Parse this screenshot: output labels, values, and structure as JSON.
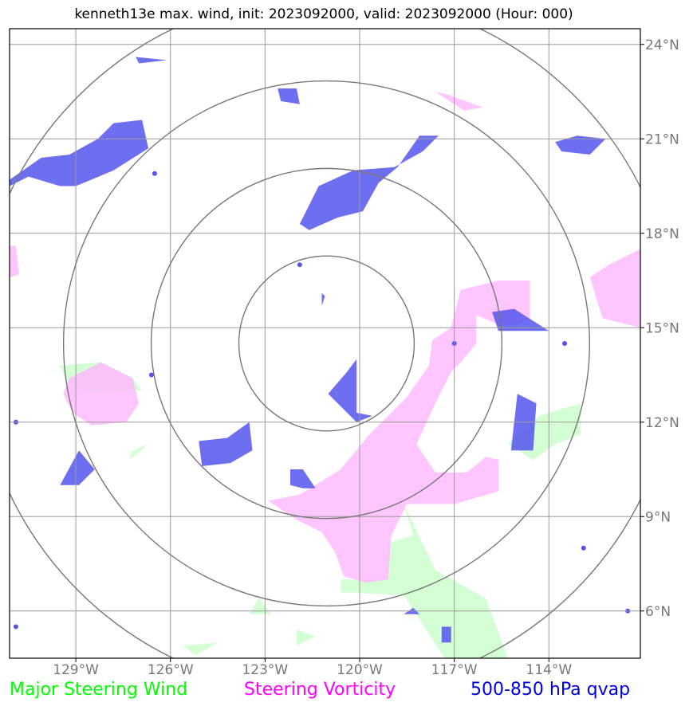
{
  "title": "kenneth13e max. wind, init: 2023092000, valid: 2023092000 (Hour: 000)",
  "legend": [
    {
      "label": "Major Steering Wind",
      "color": "#00ff00"
    },
    {
      "label": "Steering Vorticity",
      "color": "#ff00ff"
    },
    {
      "label": "500-850 hPa qvap",
      "color": "#0000dd"
    }
  ],
  "chart_data": {
    "type": "map",
    "projection": "lat-lon",
    "lon_range": [
      -131.1,
      -111.1
    ],
    "lat_range": [
      4.5,
      24.5
    ],
    "lon_ticks": [
      -129,
      -126,
      -123,
      -120,
      -117,
      -114
    ],
    "lat_ticks": [
      6,
      9,
      12,
      15,
      18,
      21,
      24
    ],
    "lon_tick_labels": [
      "129°W",
      "126°W",
      "123°W",
      "120°W",
      "117°W",
      "114°W"
    ],
    "lat_tick_labels": [
      "6°N",
      "9°N",
      "12°N",
      "15°N",
      "18°N",
      "21°N",
      "24°N"
    ],
    "grid": true,
    "range_rings": {
      "center": [
        -121.05,
        14.5
      ],
      "radii_deg": [
        2.78,
        5.56,
        8.34,
        11.12
      ],
      "color": "#777777"
    },
    "layers": [
      {
        "name": "Major Steering Wind",
        "color": "#ccffcc",
        "polygons": [
          [
            [
              -129.5,
              13.8
            ],
            [
              -128.2,
              13.9
            ],
            [
              -127.2,
              13.4
            ],
            [
              -126.9,
              13.0
            ],
            [
              -128,
              12.9
            ],
            [
              -129.2,
              13.1
            ]
          ],
          [
            [
              -120.6,
              7.0
            ],
            [
              -119.3,
              7.0
            ],
            [
              -119.0,
              8.2
            ],
            [
              -118.3,
              8.4
            ],
            [
              -118.6,
              9.4
            ],
            [
              -117.6,
              7.3
            ],
            [
              -116.0,
              6.4
            ],
            [
              -115.3,
              4.5
            ],
            [
              -117.3,
              4.5
            ],
            [
              -118.6,
              6.5
            ],
            [
              -120.6,
              6.6
            ]
          ],
          [
            [
              -114.3,
              12.2
            ],
            [
              -113.0,
              12.6
            ],
            [
              -113.0,
              11.6
            ],
            [
              -113.8,
              11.3
            ],
            [
              -114.5,
              10.8
            ],
            [
              -115.3,
              11.3
            ]
          ],
          [
            [
              -125.2,
              4.6
            ],
            [
              -124.5,
              5.0
            ],
            [
              -125.6,
              4.9
            ]
          ],
          [
            [
              -127.2,
              11.1
            ],
            [
              -126.7,
              11.3
            ],
            [
              -127.3,
              10.8
            ]
          ],
          [
            [
              -122.0,
              5.4
            ],
            [
              -121.4,
              5.2
            ],
            [
              -122.0,
              4.9
            ]
          ],
          [
            [
              -123.5,
              5.9
            ],
            [
              -122.8,
              5.9
            ],
            [
              -123.2,
              6.4
            ]
          ]
        ]
      },
      {
        "name": "Steering Vorticity",
        "color": "#ffbbff",
        "polygons": [
          [
            [
              -121.9,
              9.7
            ],
            [
              -120.6,
              10.5
            ],
            [
              -119.7,
              11.6
            ],
            [
              -118.5,
              12.8
            ],
            [
              -117.8,
              13.8
            ],
            [
              -117.7,
              14.6
            ],
            [
              -117.1,
              15.0
            ],
            [
              -116.8,
              16.2
            ],
            [
              -115.6,
              16.5
            ],
            [
              -114.6,
              16.5
            ],
            [
              -114.6,
              15.3
            ],
            [
              -115.0,
              15.1
            ],
            [
              -115.6,
              15.1
            ],
            [
              -116.3,
              15.4
            ],
            [
              -116.3,
              14.5
            ],
            [
              -116.8,
              13.9
            ],
            [
              -117.1,
              13.6
            ],
            [
              -117.6,
              12.6
            ],
            [
              -118.2,
              11.3
            ],
            [
              -117.6,
              10.4
            ],
            [
              -116.6,
              10.4
            ],
            [
              -116.0,
              10.9
            ],
            [
              -115.6,
              10.8
            ],
            [
              -115.6,
              9.8
            ],
            [
              -117.0,
              9.4
            ],
            [
              -118.5,
              9.4
            ],
            [
              -119.0,
              8.4
            ],
            [
              -119.1,
              7.0
            ],
            [
              -119.8,
              6.9
            ],
            [
              -120.5,
              7.1
            ],
            [
              -120.8,
              7.9
            ],
            [
              -121.2,
              8.5
            ],
            [
              -122.0,
              8.9
            ],
            [
              -122.9,
              9.5
            ]
          ],
          [
            [
              -129.4,
              12.9
            ],
            [
              -129.2,
              13.4
            ],
            [
              -128.2,
              13.9
            ],
            [
              -127.2,
              13.4
            ],
            [
              -127.0,
              12.6
            ],
            [
              -127.4,
              12.0
            ],
            [
              -128.5,
              11.9
            ],
            [
              -129.1,
              12.3
            ]
          ],
          [
            [
              -111.1,
              17.5
            ],
            [
              -112.1,
              17.0
            ],
            [
              -112.7,
              16.6
            ],
            [
              -112.3,
              15.3
            ],
            [
              -111.1,
              15.0
            ]
          ],
          [
            [
              -117.2,
              22.4
            ],
            [
              -116.1,
              22.0
            ],
            [
              -116.7,
              21.9
            ],
            [
              -117.6,
              22.5
            ]
          ],
          [
            [
              -130.8,
              16.7
            ],
            [
              -131.1,
              16.6
            ],
            [
              -131.1,
              17.6
            ],
            [
              -130.9,
              17.6
            ]
          ]
        ]
      },
      {
        "name": "500-850 hPa qvap",
        "color": "#5555ee",
        "polygons": [
          [
            [
              -131.1,
              19.7
            ],
            [
              -130.1,
              20.4
            ],
            [
              -129.2,
              20.5
            ],
            [
              -128.3,
              21.0
            ],
            [
              -127.8,
              21.5
            ],
            [
              -126.9,
              21.6
            ],
            [
              -126.7,
              20.7
            ],
            [
              -127.8,
              20.0
            ],
            [
              -129.0,
              19.5
            ],
            [
              -129.5,
              19.5
            ],
            [
              -130.5,
              19.8
            ],
            [
              -131.1,
              19.5
            ]
          ],
          [
            [
              -121.9,
              18.3
            ],
            [
              -121.3,
              19.5
            ],
            [
              -120.2,
              20.0
            ],
            [
              -118.9,
              20.1
            ],
            [
              -118.0,
              20.6
            ],
            [
              -117.5,
              21.1
            ],
            [
              -118.1,
              21.1
            ],
            [
              -118.8,
              20.1
            ],
            [
              -119.4,
              19.6
            ],
            [
              -119.9,
              18.7
            ],
            [
              -120.7,
              18.5
            ],
            [
              -121.6,
              18.1
            ]
          ],
          [
            [
              -120.1,
              14.0
            ],
            [
              -120.1,
              12.3
            ],
            [
              -119.6,
              12.2
            ],
            [
              -120.1,
              12.0
            ],
            [
              -121.0,
              12.9
            ],
            [
              -120.4,
              13.6
            ]
          ],
          [
            [
              -114.0,
              14.9
            ],
            [
              -115.6,
              14.9
            ],
            [
              -115.8,
              15.5
            ],
            [
              -115.1,
              15.6
            ]
          ],
          [
            [
              -125.0,
              10.6
            ],
            [
              -124.1,
              10.7
            ],
            [
              -123.4,
              11.1
            ],
            [
              -123.5,
              12.0
            ],
            [
              -124.2,
              11.5
            ],
            [
              -125.1,
              11.4
            ]
          ],
          [
            [
              -129.5,
              10.0
            ],
            [
              -128.9,
              10.0
            ],
            [
              -128.4,
              10.5
            ],
            [
              -128.9,
              11.1
            ]
          ],
          [
            [
              -115.0,
              12.9
            ],
            [
              -115.2,
              11.1
            ],
            [
              -114.5,
              11.1
            ],
            [
              -114.4,
              12.6
            ]
          ],
          [
            [
              -113.6,
              20.6
            ],
            [
              -112.7,
              20.5
            ],
            [
              -112.2,
              21.0
            ],
            [
              -113.1,
              21.1
            ],
            [
              -113.8,
              20.9
            ]
          ],
          [
            [
              -122.5,
              22.2
            ],
            [
              -122.6,
              22.6
            ],
            [
              -122.0,
              22.6
            ],
            [
              -121.9,
              22.1
            ]
          ],
          [
            [
              -127.1,
              23.6
            ],
            [
              -126.1,
              23.5
            ],
            [
              -127.0,
              23.4
            ]
          ],
          [
            [
              -122.2,
              10.0
            ],
            [
              -121.8,
              9.9
            ],
            [
              -121.4,
              9.9
            ],
            [
              -121.8,
              10.5
            ],
            [
              -122.2,
              10.5
            ]
          ],
          [
            [
              -117.4,
              5.0
            ],
            [
              -117.1,
              5.0
            ],
            [
              -117.1,
              5.5
            ],
            [
              -117.4,
              5.5
            ]
          ],
          [
            [
              -118.3,
              6.1
            ],
            [
              -118.1,
              5.9
            ],
            [
              -118.6,
              5.9
            ]
          ],
          [
            [
              -121.2,
              15.7
            ],
            [
              -121.1,
              16.0
            ],
            [
              -121.2,
              16.1
            ]
          ]
        ]
      }
    ],
    "dots": [
      {
        "lon": -126.5,
        "lat": 19.9,
        "color": "#5555ee"
      },
      {
        "lon": -121.9,
        "lat": 17.0,
        "color": "#5555ee"
      },
      {
        "lon": -113.5,
        "lat": 14.5,
        "color": "#5555ee"
      },
      {
        "lon": -126.6,
        "lat": 13.5,
        "color": "#5555ee"
      },
      {
        "lon": -130.9,
        "lat": 12.0,
        "color": "#5555ee"
      },
      {
        "lon": -112.9,
        "lat": 8.0,
        "color": "#5555ee"
      },
      {
        "lon": -111.5,
        "lat": 6.0,
        "color": "#5555ee"
      },
      {
        "lon": -130.9,
        "lat": 5.5,
        "color": "#5555ee"
      },
      {
        "lon": -117.0,
        "lat": 14.5,
        "color": "#5555ee"
      }
    ]
  }
}
